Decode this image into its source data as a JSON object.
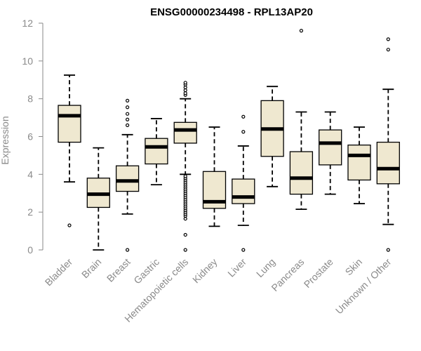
{
  "chart_data": {
    "type": "boxplot",
    "title": "ENSG00000234498 - RPL13AP20",
    "xlabel": "",
    "ylabel": "Expression",
    "ylim": [
      0,
      12
    ],
    "yticks": [
      0,
      2,
      4,
      6,
      8,
      10,
      12
    ],
    "grid": false,
    "categories": [
      "Bladder",
      "Brain",
      "Breast",
      "Gastric",
      "Hematopoietic cells",
      "Kidney",
      "Liver",
      "Lung",
      "Pancreas",
      "Prostate",
      "Skin",
      "Unknown / Other"
    ],
    "boxes": [
      {
        "whisker_low": 3.6,
        "q1": 5.7,
        "median": 7.1,
        "q3": 7.65,
        "whisker_high": 9.25,
        "outliers": [
          1.3
        ]
      },
      {
        "whisker_low": 0.0,
        "q1": 2.25,
        "median": 2.95,
        "q3": 3.8,
        "whisker_high": 5.4,
        "outliers": []
      },
      {
        "whisker_low": 1.9,
        "q1": 3.1,
        "median": 3.65,
        "q3": 4.45,
        "whisker_high": 6.1,
        "outliers": [
          0.0,
          6.6,
          6.9,
          7.2,
          7.55,
          7.9
        ]
      },
      {
        "whisker_low": 3.45,
        "q1": 4.55,
        "median": 5.45,
        "q3": 5.9,
        "whisker_high": 6.95,
        "outliers": []
      },
      {
        "whisker_low": 4.0,
        "q1": 5.65,
        "median": 6.35,
        "q3": 6.75,
        "whisker_high": 8.0,
        "outliers": [
          0.0,
          0.8,
          1.65,
          1.8,
          1.9,
          2.0,
          2.1,
          2.2,
          2.3,
          2.4,
          2.5,
          2.6,
          2.7,
          2.8,
          2.9,
          3.0,
          3.1,
          3.2,
          3.3,
          3.4,
          3.5,
          3.6,
          3.7,
          3.8,
          3.9,
          8.2,
          8.3,
          8.45,
          8.6,
          8.75,
          8.85
        ]
      },
      {
        "whisker_low": 1.25,
        "q1": 2.2,
        "median": 2.55,
        "q3": 4.15,
        "whisker_high": 6.5,
        "outliers": []
      },
      {
        "whisker_low": 1.3,
        "q1": 2.45,
        "median": 2.8,
        "q3": 3.75,
        "whisker_high": 5.5,
        "outliers": [
          0.0,
          6.25,
          7.05
        ]
      },
      {
        "whisker_low": 3.35,
        "q1": 4.95,
        "median": 6.4,
        "q3": 7.9,
        "whisker_high": 8.65,
        "outliers": []
      },
      {
        "whisker_low": 2.15,
        "q1": 2.95,
        "median": 3.8,
        "q3": 5.2,
        "whisker_high": 7.3,
        "outliers": [
          11.6
        ]
      },
      {
        "whisker_low": 2.95,
        "q1": 4.5,
        "median": 5.65,
        "q3": 6.35,
        "whisker_high": 7.3,
        "outliers": []
      },
      {
        "whisker_low": 2.45,
        "q1": 3.7,
        "median": 5.0,
        "q3": 5.55,
        "whisker_high": 6.5,
        "outliers": []
      },
      {
        "whisker_low": 1.35,
        "q1": 3.5,
        "median": 4.3,
        "q3": 5.7,
        "whisker_high": 8.5,
        "outliers": [
          0.0,
          10.6,
          11.15
        ]
      }
    ],
    "colors": {
      "box_fill": "#efe8d0",
      "box_stroke": "#000000",
      "median": "#000000",
      "axis": "#8a8a8a",
      "label": "#8a8a8a"
    }
  }
}
